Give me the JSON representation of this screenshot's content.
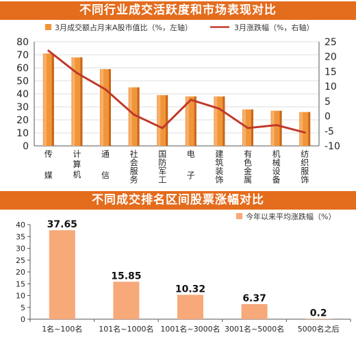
{
  "colors": {
    "banner": "#e36c1d",
    "bar_face": "#f0963a",
    "bar_light": "#f7b06b",
    "bar_dark": "#c9651a",
    "line": "#c0392b",
    "bar2": "#f7a97a"
  },
  "chart_data": [
    {
      "type": "bar",
      "title": "不同行业成交活跃度和市场表现对比",
      "categories": [
        "传媒",
        "计算机",
        "通信",
        "社会服务",
        "国防军工",
        "电子",
        "建筑装饰",
        "有色金属",
        "机械设备",
        "纺织服饰"
      ],
      "series": [
        {
          "name": "3月成交额占月末A股市值比（%，左轴）",
          "type": "bar",
          "axis": "left",
          "values": [
            71,
            68,
            59,
            45,
            39,
            38,
            38,
            28,
            27,
            26
          ]
        },
        {
          "name": "3月涨跌幅（%，右轴）",
          "type": "line",
          "axis": "right",
          "values": [
            22,
            14.5,
            9,
            0.5,
            -4,
            5.5,
            2.5,
            -4,
            -3,
            -5.5
          ]
        }
      ],
      "y_left": {
        "min": 0,
        "max": 80,
        "ticks": [
          0,
          10,
          20,
          30,
          40,
          50,
          60,
          70,
          80
        ]
      },
      "y_right": {
        "min": -10,
        "max": 25,
        "ticks": [
          -10,
          -5,
          0,
          5,
          10,
          15,
          20,
          25
        ]
      }
    },
    {
      "type": "bar",
      "title": "不同成交排名区间股票涨幅对比",
      "categories": [
        "1名~100名",
        "101名~1000名",
        "1001名~3000名",
        "3001名~5000名",
        "5000名之后"
      ],
      "series": [
        {
          "name": "今年以来平均涨跌幅（%）",
          "values": [
            37.65,
            15.85,
            10.32,
            6.37,
            0.2
          ]
        }
      ],
      "data_labels": [
        "37.65",
        "15.85",
        "10.32",
        "6.37",
        "0.2"
      ],
      "y": {
        "min": 0,
        "max": 40,
        "ticks": [
          0,
          5,
          10,
          15,
          20,
          25,
          30,
          35,
          40
        ]
      }
    }
  ]
}
